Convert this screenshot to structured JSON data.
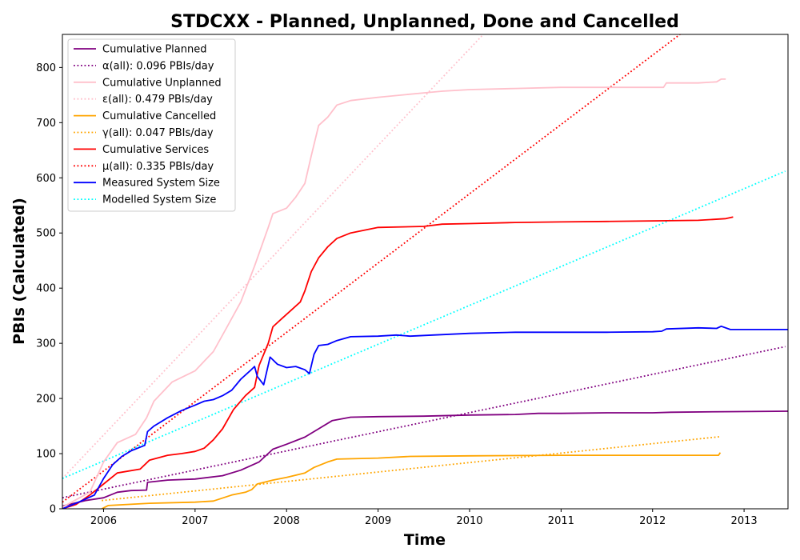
{
  "chart_data": {
    "type": "line",
    "title": "STDCXX - Planned, Unplanned, Done  and Cancelled",
    "xlabel": "Time",
    "ylabel": "PBIs (Calculated)",
    "xlim": [
      2005.55,
      2013.48
    ],
    "ylim": [
      0,
      860
    ],
    "x_ticks": [
      2006,
      2007,
      2008,
      2009,
      2010,
      2011,
      2012,
      2013
    ],
    "y_ticks": [
      0,
      100,
      200,
      300,
      400,
      500,
      600,
      700,
      800
    ],
    "grid": false,
    "legend_position": "top-left",
    "series": [
      {
        "name": "Cumulative Planned",
        "color": "#800080",
        "style": "solid",
        "points": [
          [
            2005.55,
            5
          ],
          [
            2005.8,
            15
          ],
          [
            2006.0,
            20
          ],
          [
            2006.15,
            30
          ],
          [
            2006.3,
            33
          ],
          [
            2006.47,
            34
          ],
          [
            2006.48,
            48
          ],
          [
            2006.7,
            52
          ],
          [
            2007.0,
            54
          ],
          [
            2007.3,
            60
          ],
          [
            2007.5,
            70
          ],
          [
            2007.7,
            85
          ],
          [
            2007.85,
            108
          ],
          [
            2008.0,
            117
          ],
          [
            2008.2,
            130
          ],
          [
            2008.35,
            145
          ],
          [
            2008.5,
            160
          ],
          [
            2008.7,
            166
          ],
          [
            2009.0,
            167
          ],
          [
            2009.5,
            168
          ],
          [
            2010.0,
            170
          ],
          [
            2010.5,
            171
          ],
          [
            2010.75,
            173
          ],
          [
            2011.0,
            173
          ],
          [
            2011.5,
            174
          ],
          [
            2012.0,
            174
          ],
          [
            2012.2,
            175
          ],
          [
            2012.8,
            176
          ],
          [
            2013.48,
            177
          ]
        ]
      },
      {
        "name": "α(all): 0.096 PBIs/day",
        "color": "#800080",
        "style": "dotted",
        "points": [
          [
            2005.55,
            20
          ],
          [
            2013.45,
            294
          ]
        ]
      },
      {
        "name": "Cumulative Unplanned",
        "color": "#ffc0cb",
        "style": "solid",
        "points": [
          [
            2005.55,
            3
          ],
          [
            2005.85,
            30
          ],
          [
            2006.0,
            85
          ],
          [
            2006.15,
            120
          ],
          [
            2006.35,
            135
          ],
          [
            2006.47,
            165
          ],
          [
            2006.55,
            195
          ],
          [
            2006.75,
            230
          ],
          [
            2007.0,
            250
          ],
          [
            2007.2,
            285
          ],
          [
            2007.35,
            330
          ],
          [
            2007.5,
            375
          ],
          [
            2007.65,
            440
          ],
          [
            2007.8,
            510
          ],
          [
            2007.85,
            535
          ],
          [
            2008.0,
            545
          ],
          [
            2008.1,
            565
          ],
          [
            2008.2,
            590
          ],
          [
            2008.27,
            640
          ],
          [
            2008.35,
            695
          ],
          [
            2008.45,
            710
          ],
          [
            2008.55,
            732
          ],
          [
            2008.7,
            740
          ],
          [
            2009.0,
            746
          ],
          [
            2009.5,
            754
          ],
          [
            2009.7,
            757
          ],
          [
            2010.0,
            760
          ],
          [
            2010.5,
            762
          ],
          [
            2011.0,
            764
          ],
          [
            2011.5,
            764
          ],
          [
            2012.0,
            764
          ],
          [
            2012.12,
            764
          ],
          [
            2012.15,
            772
          ],
          [
            2012.5,
            772
          ],
          [
            2012.7,
            774
          ],
          [
            2012.75,
            779
          ],
          [
            2012.8,
            779
          ]
        ]
      },
      {
        "name": "ε(all): 0.479 PBIs/day",
        "color": "#ffc0cb",
        "style": "dotted",
        "points": [
          [
            2005.55,
            55
          ],
          [
            2010.15,
            860
          ]
        ]
      },
      {
        "name": "Cumulative Cancelled",
        "color": "#ffa500",
        "style": "solid",
        "points": [
          [
            2005.98,
            0
          ],
          [
            2006.05,
            6
          ],
          [
            2006.5,
            10
          ],
          [
            2007.0,
            12
          ],
          [
            2007.2,
            14
          ],
          [
            2007.4,
            25
          ],
          [
            2007.55,
            30
          ],
          [
            2007.62,
            35
          ],
          [
            2007.68,
            45
          ],
          [
            2007.85,
            52
          ],
          [
            2008.0,
            57
          ],
          [
            2008.2,
            65
          ],
          [
            2008.3,
            75
          ],
          [
            2008.45,
            85
          ],
          [
            2008.55,
            90
          ],
          [
            2009.0,
            92
          ],
          [
            2009.35,
            95
          ],
          [
            2010.0,
            96
          ],
          [
            2011.0,
            97
          ],
          [
            2012.0,
            97
          ],
          [
            2012.72,
            97
          ],
          [
            2012.74,
            102
          ]
        ]
      },
      {
        "name": "γ(all): 0.047 PBIs/day",
        "color": "#ffa500",
        "style": "dotted",
        "points": [
          [
            2005.98,
            15
          ],
          [
            2012.75,
            131
          ]
        ]
      },
      {
        "name": "Cumulative Services",
        "color": "#ff0000",
        "style": "solid",
        "points": [
          [
            2005.55,
            0
          ],
          [
            2005.7,
            8
          ],
          [
            2005.85,
            25
          ],
          [
            2006.0,
            45
          ],
          [
            2006.15,
            65
          ],
          [
            2006.4,
            72
          ],
          [
            2006.5,
            88
          ],
          [
            2006.7,
            97
          ],
          [
            2006.85,
            100
          ],
          [
            2007.0,
            104
          ],
          [
            2007.1,
            110
          ],
          [
            2007.2,
            125
          ],
          [
            2007.3,
            145
          ],
          [
            2007.42,
            180
          ],
          [
            2007.55,
            205
          ],
          [
            2007.65,
            220
          ],
          [
            2007.7,
            260
          ],
          [
            2007.8,
            300
          ],
          [
            2007.85,
            330
          ],
          [
            2007.95,
            345
          ],
          [
            2008.05,
            360
          ],
          [
            2008.15,
            375
          ],
          [
            2008.2,
            395
          ],
          [
            2008.27,
            430
          ],
          [
            2008.35,
            455
          ],
          [
            2008.45,
            475
          ],
          [
            2008.55,
            490
          ],
          [
            2008.7,
            500
          ],
          [
            2008.85,
            505
          ],
          [
            2009.0,
            510
          ],
          [
            2009.5,
            512
          ],
          [
            2009.7,
            516
          ],
          [
            2010.0,
            517
          ],
          [
            2010.5,
            519
          ],
          [
            2011.0,
            520
          ],
          [
            2011.5,
            521
          ],
          [
            2012.0,
            522
          ],
          [
            2012.5,
            523
          ],
          [
            2012.8,
            526
          ],
          [
            2012.88,
            529
          ]
        ]
      },
      {
        "name": "μ(all): 0.335 PBIs/day",
        "color": "#ff0000",
        "style": "dotted",
        "points": [
          [
            2005.55,
            12
          ],
          [
            2012.3,
            860
          ]
        ]
      },
      {
        "name": "Measured System Size",
        "color": "#0000ff",
        "style": "solid",
        "points": [
          [
            2005.55,
            0
          ],
          [
            2005.7,
            10
          ],
          [
            2005.9,
            25
          ],
          [
            2006.0,
            55
          ],
          [
            2006.1,
            80
          ],
          [
            2006.2,
            95
          ],
          [
            2006.3,
            105
          ],
          [
            2006.45,
            115
          ],
          [
            2006.48,
            140
          ],
          [
            2006.55,
            150
          ],
          [
            2006.7,
            165
          ],
          [
            2006.85,
            178
          ],
          [
            2007.0,
            188
          ],
          [
            2007.1,
            195
          ],
          [
            2007.2,
            198
          ],
          [
            2007.3,
            205
          ],
          [
            2007.4,
            215
          ],
          [
            2007.5,
            235
          ],
          [
            2007.6,
            250
          ],
          [
            2007.65,
            258
          ],
          [
            2007.68,
            240
          ],
          [
            2007.75,
            225
          ],
          [
            2007.82,
            275
          ],
          [
            2007.9,
            262
          ],
          [
            2008.0,
            256
          ],
          [
            2008.1,
            258
          ],
          [
            2008.2,
            252
          ],
          [
            2008.25,
            245
          ],
          [
            2008.3,
            280
          ],
          [
            2008.35,
            296
          ],
          [
            2008.45,
            298
          ],
          [
            2008.55,
            305
          ],
          [
            2008.7,
            312
          ],
          [
            2009.0,
            313
          ],
          [
            2009.2,
            315
          ],
          [
            2009.35,
            313
          ],
          [
            2009.6,
            315
          ],
          [
            2010.0,
            318
          ],
          [
            2010.5,
            320
          ],
          [
            2011.0,
            320
          ],
          [
            2011.5,
            320
          ],
          [
            2012.0,
            321
          ],
          [
            2012.1,
            322
          ],
          [
            2012.15,
            326
          ],
          [
            2012.5,
            328
          ],
          [
            2012.7,
            327
          ],
          [
            2012.75,
            331
          ],
          [
            2012.85,
            325
          ],
          [
            2013.48,
            325
          ]
        ]
      },
      {
        "name": "Modelled System Size",
        "color": "#00ffff",
        "style": "dotted",
        "points": [
          [
            2005.55,
            55
          ],
          [
            2013.45,
            612
          ]
        ]
      }
    ]
  }
}
